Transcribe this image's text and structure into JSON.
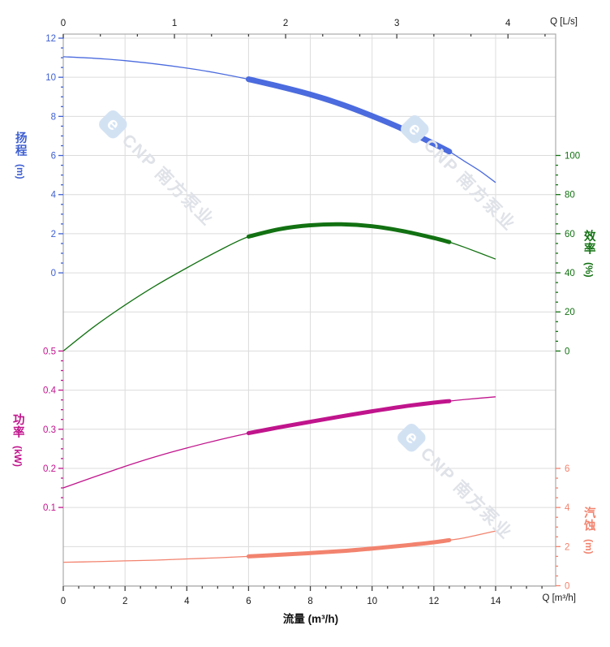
{
  "watermark": {
    "logo_letter": "e",
    "text": "CNP 南方泵业"
  },
  "chart_data": {
    "type": "line",
    "title": "",
    "x_axis": {
      "label": "流量 (m³/h)",
      "corner_label": "Q [m³/h]",
      "min": 0,
      "max": 14,
      "major_ticks": [
        0,
        2,
        4,
        6,
        8,
        10,
        12,
        14
      ],
      "minor_step": 0.5,
      "tick_color": "#1a1a1a"
    },
    "x_axis_top": {
      "corner_label": "Q [L/s]",
      "min": 0,
      "max": 4,
      "major_ticks": [
        0,
        1,
        2,
        3,
        4
      ],
      "minor_step": 0.333333,
      "unit_factor_to_bottom": 3.6,
      "tick_color": "#1a1a1a"
    },
    "grid": {
      "show": true,
      "color": "#dcdcdc",
      "frame_color": "#ababab"
    },
    "y_axes": [
      {
        "id": "head",
        "label": "扬程",
        "unit": "(m)",
        "side": "left",
        "color": "#3E5FD1",
        "ticks": [
          12,
          10,
          8,
          6,
          4,
          2,
          0
        ],
        "minor_step": 0.5,
        "range": [
          0,
          12
        ]
      },
      {
        "id": "eff",
        "label": "效率",
        "unit": "(%)",
        "side": "right",
        "color": "#127112",
        "ticks": [
          100,
          80,
          60,
          40,
          20,
          0
        ],
        "minor_step": 5,
        "range": [
          0,
          100
        ]
      },
      {
        "id": "power",
        "label": "功率",
        "unit": "(kW)",
        "side": "left",
        "color": "#C0148C",
        "ticks": [
          0.5,
          0.4,
          0.3,
          0.2,
          0.1
        ],
        "minor_step": 0.025,
        "range": [
          0.1,
          0.5
        ]
      },
      {
        "id": "npsh",
        "label": "汽蚀",
        "unit": "(m)",
        "side": "right",
        "color": "#F2836E",
        "ticks": [
          6,
          4,
          2,
          0
        ],
        "minor_step": 0.5,
        "range": [
          0,
          6
        ]
      }
    ],
    "duty_flow_range_m3h": [
      6,
      12.5
    ],
    "series": [
      {
        "id": "head",
        "name": "扬程",
        "axis": "head",
        "color": "#4B6BDE",
        "bold_range": [
          6,
          12.5
        ],
        "bold_width": 7,
        "points": [
          [
            0,
            11.05
          ],
          [
            1,
            10.97
          ],
          [
            2,
            10.85
          ],
          [
            3,
            10.68
          ],
          [
            4,
            10.47
          ],
          [
            5,
            10.21
          ],
          [
            6,
            9.9
          ],
          [
            7,
            9.53
          ],
          [
            8,
            9.12
          ],
          [
            9,
            8.62
          ],
          [
            10,
            8.02
          ],
          [
            11,
            7.35
          ],
          [
            12,
            6.6
          ],
          [
            12.5,
            6.2
          ],
          [
            13,
            5.7
          ],
          [
            13.5,
            5.2
          ],
          [
            14,
            4.62
          ]
        ]
      },
      {
        "id": "eff",
        "name": "效率",
        "axis": "eff",
        "color": "#127112",
        "bold_range": [
          6,
          12.5
        ],
        "bold_width": 5,
        "points": [
          [
            0,
            0
          ],
          [
            1,
            12.5
          ],
          [
            2,
            23.5
          ],
          [
            3,
            33.5
          ],
          [
            4,
            42.5
          ],
          [
            5,
            51
          ],
          [
            6,
            58.5
          ],
          [
            7,
            62.3
          ],
          [
            8,
            64.3
          ],
          [
            9,
            64.8
          ],
          [
            10,
            63.8
          ],
          [
            11,
            61.3
          ],
          [
            12,
            57.8
          ],
          [
            12.5,
            55.7
          ],
          [
            13,
            53
          ],
          [
            14,
            47
          ]
        ]
      },
      {
        "id": "power",
        "name": "功率",
        "axis": "power",
        "color": "#C0148C",
        "bold_range": [
          6,
          12.5
        ],
        "bold_width": 5,
        "points": [
          [
            0,
            0.15
          ],
          [
            1,
            0.178
          ],
          [
            2,
            0.205
          ],
          [
            3,
            0.23
          ],
          [
            4,
            0.252
          ],
          [
            5,
            0.272
          ],
          [
            6,
            0.29
          ],
          [
            7,
            0.305
          ],
          [
            8,
            0.319
          ],
          [
            9,
            0.333
          ],
          [
            10,
            0.346
          ],
          [
            11,
            0.358
          ],
          [
            12,
            0.368
          ],
          [
            12.5,
            0.372
          ],
          [
            13,
            0.376
          ],
          [
            14,
            0.383
          ]
        ]
      },
      {
        "id": "npsh",
        "name": "汽蚀",
        "axis": "npsh",
        "color": "#F2836E",
        "bold_range": [
          6,
          12.5
        ],
        "bold_width": 5,
        "points": [
          [
            0,
            1.2
          ],
          [
            1,
            1.23
          ],
          [
            2,
            1.27
          ],
          [
            3,
            1.31
          ],
          [
            4,
            1.37
          ],
          [
            5,
            1.43
          ],
          [
            6,
            1.5
          ],
          [
            7,
            1.58
          ],
          [
            8,
            1.67
          ],
          [
            9,
            1.77
          ],
          [
            10,
            1.9
          ],
          [
            11,
            2.05
          ],
          [
            12,
            2.22
          ],
          [
            12.5,
            2.33
          ],
          [
            13,
            2.45
          ],
          [
            14,
            2.8
          ]
        ]
      }
    ]
  }
}
